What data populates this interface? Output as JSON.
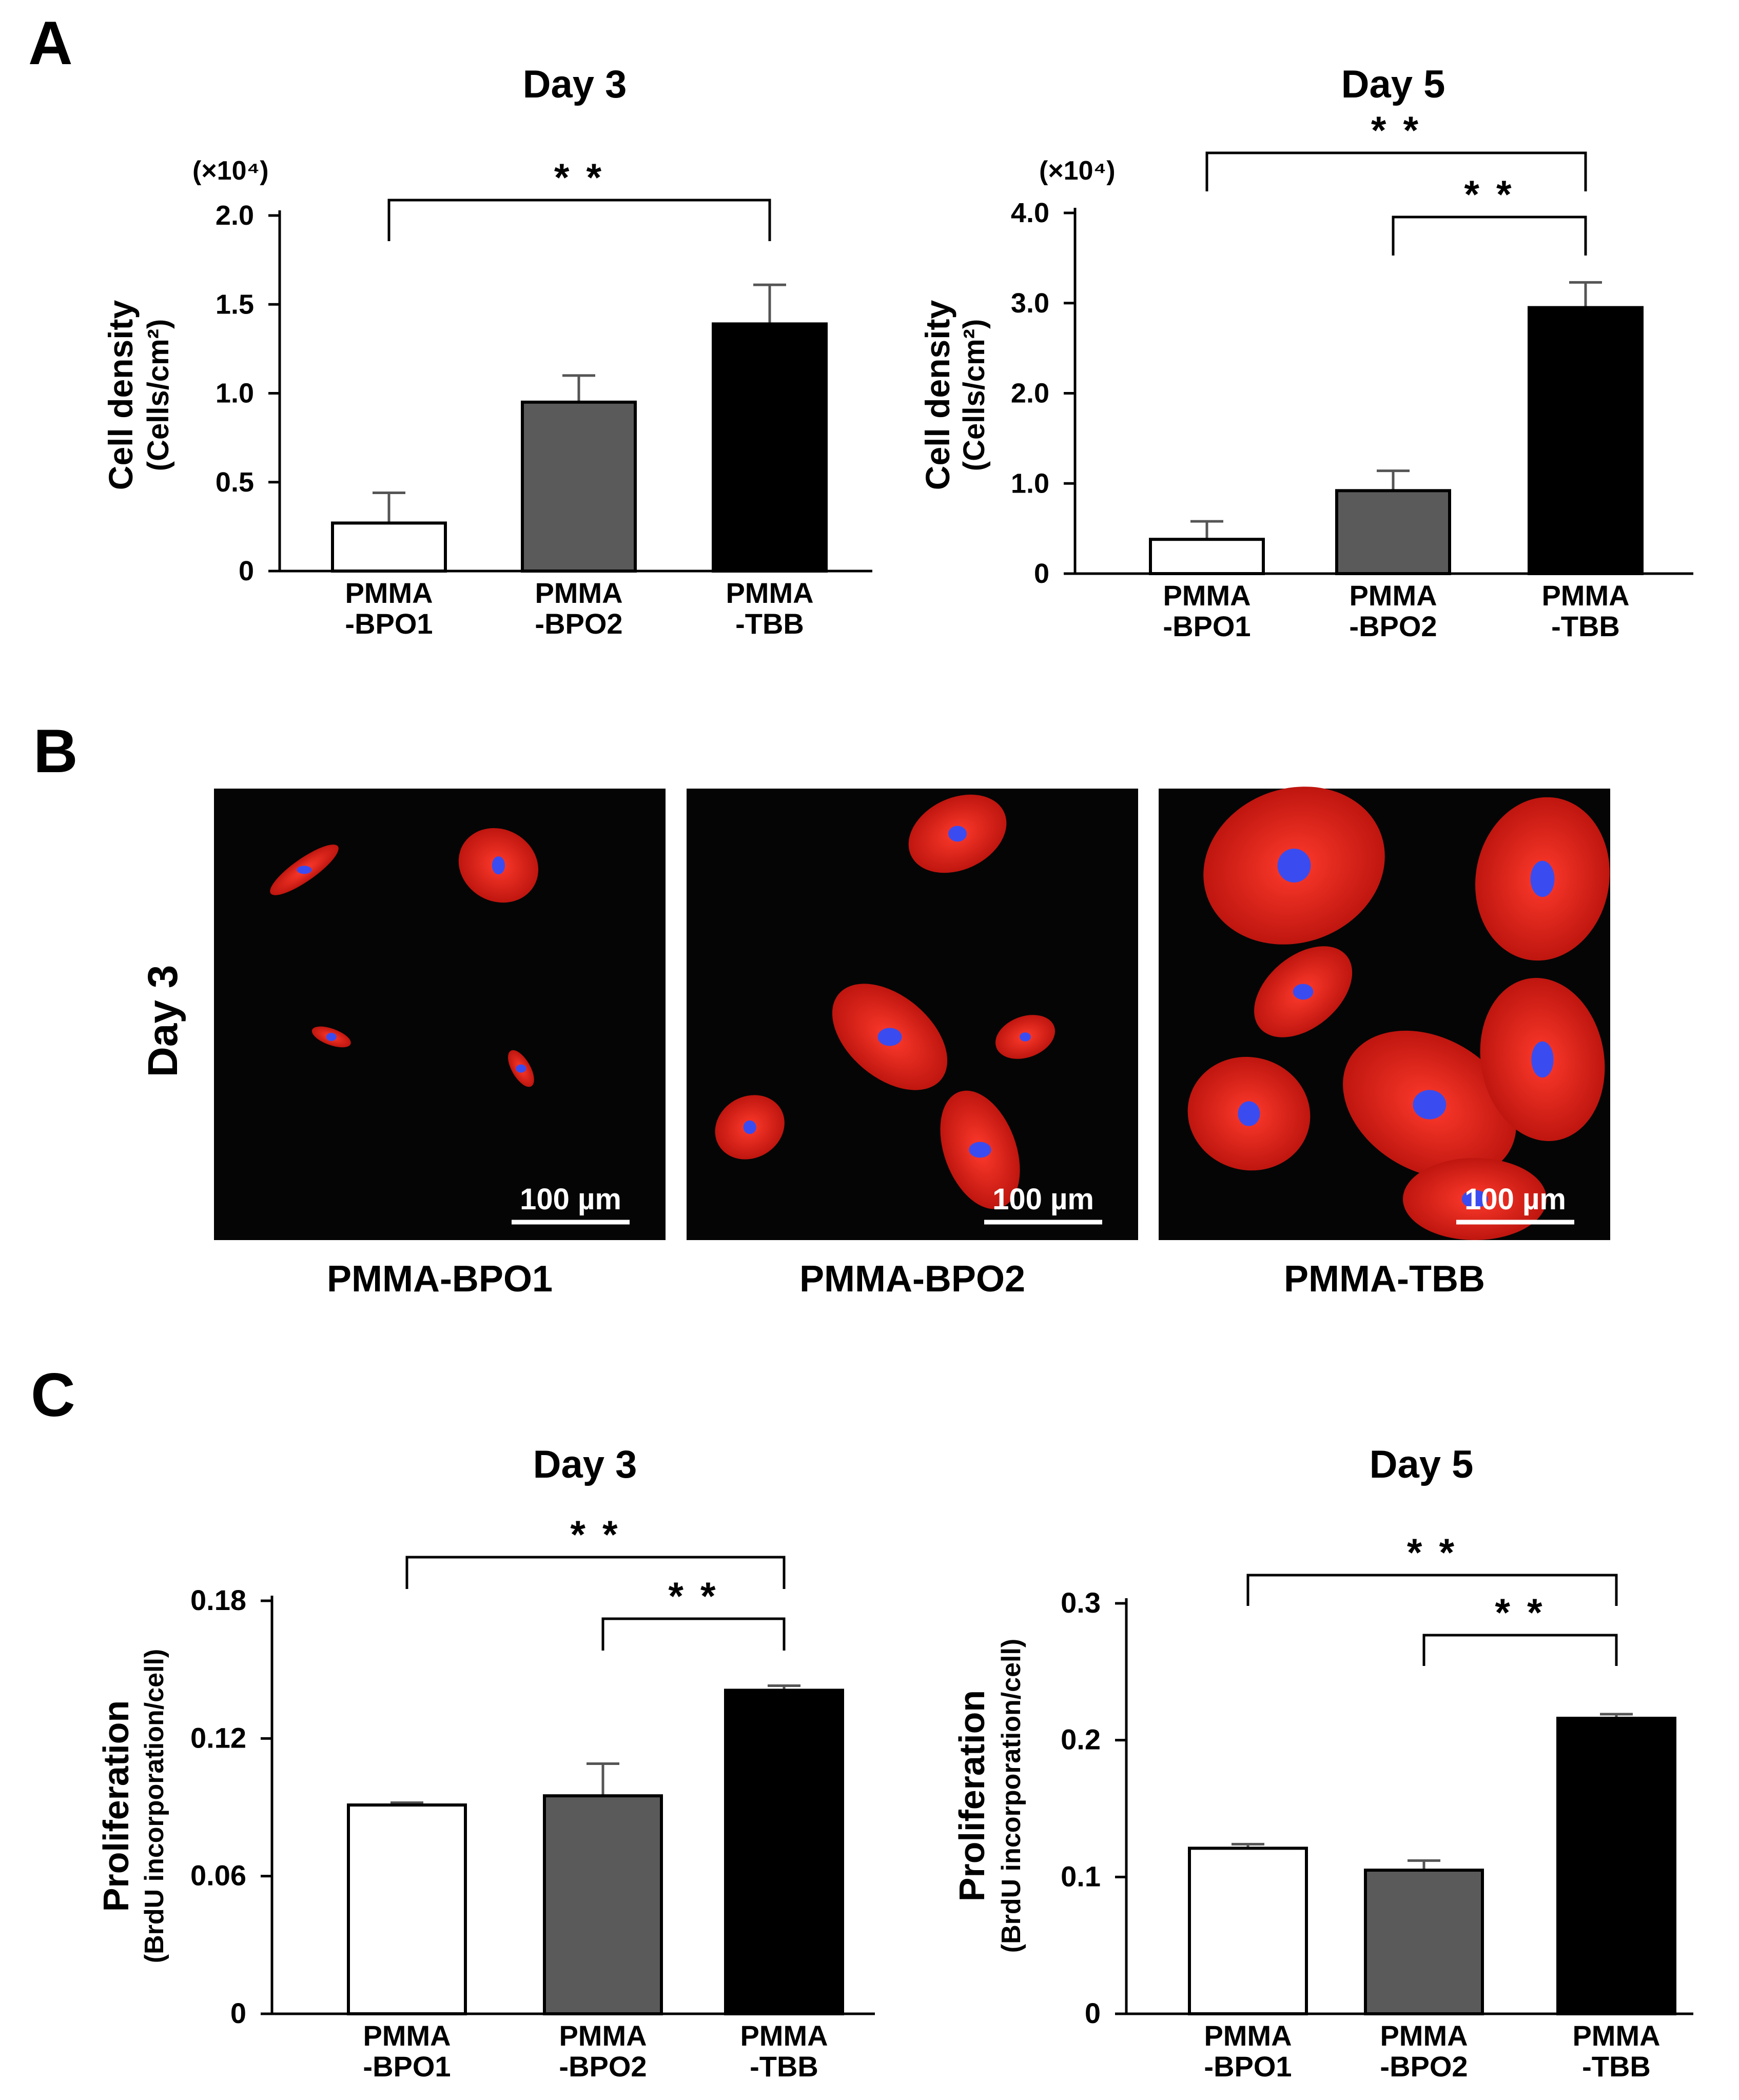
{
  "panel_labels": {
    "a": "A",
    "b": "B",
    "c": "C"
  },
  "panel_b": {
    "row_label": "Day 3",
    "images": [
      {
        "caption": "PMMA-BPO1",
        "scale_bar": "100 µm"
      },
      {
        "caption": "PMMA-BPO2",
        "scale_bar": "100 µm"
      },
      {
        "caption": "PMMA-TBB",
        "scale_bar": "100 µm"
      }
    ]
  },
  "chart_data": [
    {
      "type": "bar",
      "panel": "A",
      "title": "Day 3",
      "ylabel_line1": "Cell density",
      "ylabel_line2": "(Cells/cm²)",
      "multiplier": "(×10⁴)",
      "categories": [
        [
          "PMMA",
          "-BPO1"
        ],
        [
          "PMMA",
          "-BPO2"
        ],
        [
          "PMMA",
          "-TBB"
        ]
      ],
      "values": [
        0.27,
        0.95,
        1.39
      ],
      "errors": [
        0.17,
        0.15,
        0.22
      ],
      "colors": [
        "#ffffff",
        "#5a5a5a",
        "#000000"
      ],
      "ylim": [
        0,
        2.0
      ],
      "ticks": [
        0,
        0.5,
        1.0,
        1.5,
        2.0
      ],
      "tick_labels": [
        "0",
        "0.5",
        "1.0",
        "1.5",
        "2.0"
      ],
      "significance": [
        {
          "from": 0,
          "to": 2,
          "label": "* *"
        }
      ]
    },
    {
      "type": "bar",
      "panel": "A",
      "title": "Day 5",
      "ylabel_line1": "Cell density",
      "ylabel_line2": "(Cells/cm²)",
      "multiplier": "(×10⁴)",
      "categories": [
        [
          "PMMA",
          "-BPO1"
        ],
        [
          "PMMA",
          "-BPO2"
        ],
        [
          "PMMA",
          "-TBB"
        ]
      ],
      "values": [
        0.38,
        0.92,
        2.95
      ],
      "errors": [
        0.2,
        0.22,
        0.28
      ],
      "colors": [
        "#ffffff",
        "#5a5a5a",
        "#000000"
      ],
      "ylim": [
        0,
        4.0
      ],
      "ticks": [
        0,
        1.0,
        2.0,
        3.0,
        4.0
      ],
      "tick_labels": [
        "0",
        "1.0",
        "2.0",
        "3.0",
        "4.0"
      ],
      "significance": [
        {
          "from": 0,
          "to": 2,
          "label": "* *"
        },
        {
          "from": 1,
          "to": 2,
          "label": "* *"
        }
      ]
    },
    {
      "type": "bar",
      "panel": "C",
      "title": "Day 3",
      "ylabel_line1": "Proliferation",
      "ylabel_line2": "(BrdU incorporation/cell)",
      "multiplier": "",
      "categories": [
        [
          "PMMA",
          "-BPO1"
        ],
        [
          "PMMA",
          "-BPO2"
        ],
        [
          "PMMA",
          "-TBB"
        ]
      ],
      "values": [
        0.091,
        0.095,
        0.141
      ],
      "errors": [
        0.001,
        0.014,
        0.002
      ],
      "colors": [
        "#ffffff",
        "#5a5a5a",
        "#000000"
      ],
      "ylim": [
        0,
        0.18
      ],
      "ticks": [
        0,
        0.06,
        0.12,
        0.18
      ],
      "tick_labels": [
        "0",
        "0.06",
        "0.12",
        "0.18"
      ],
      "significance": [
        {
          "from": 0,
          "to": 2,
          "label": "* *"
        },
        {
          "from": 1,
          "to": 2,
          "label": "* *"
        }
      ]
    },
    {
      "type": "bar",
      "panel": "C",
      "title": "Day 5",
      "ylabel_line1": "Proliferation",
      "ylabel_line2": "(BrdU incorporation/cell)",
      "multiplier": "",
      "categories": [
        [
          "PMMA",
          "-BPO1"
        ],
        [
          "PMMA",
          "-BPO2"
        ],
        [
          "PMMA",
          "-TBB"
        ]
      ],
      "values": [
        0.121,
        0.105,
        0.216
      ],
      "errors": [
        0.003,
        0.007,
        0.003
      ],
      "colors": [
        "#ffffff",
        "#5a5a5a",
        "#000000"
      ],
      "ylim": [
        0,
        0.3
      ],
      "ticks": [
        0,
        0.1,
        0.2,
        0.3
      ],
      "tick_labels": [
        "0",
        "0.1",
        "0.2",
        "0.3"
      ],
      "significance": [
        {
          "from": 0,
          "to": 2,
          "label": "* *"
        },
        {
          "from": 1,
          "to": 2,
          "label": "* *"
        }
      ]
    }
  ],
  "colors": {
    "micro_bg": "#050505",
    "actin": "#e0241c",
    "nucleus": "#3a4cf0",
    "scale_bar": "#ffffff"
  }
}
